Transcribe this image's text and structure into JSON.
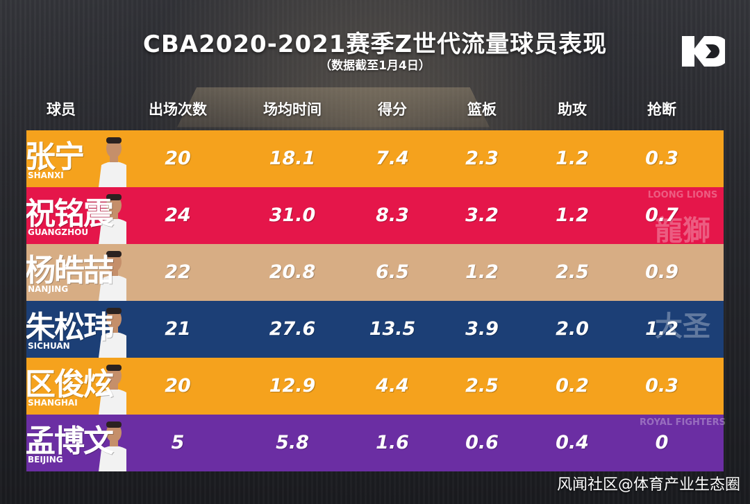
{
  "title": "CBA2020-2021赛季Z世代流量球员表现",
  "subtitle": "（数据截至1月4日）",
  "watermark": "风闻社区@体育产业生态圈",
  "logo_icon": "kd-logo-icon",
  "chart_data": {
    "type": "table",
    "columns": [
      "球员",
      "出场次数",
      "场均时间",
      "得分",
      "篮板",
      "助攻",
      "抢断"
    ],
    "rows": [
      {
        "player": "张宁",
        "team_tag": "SHANXI",
        "color": "#f5a21d",
        "values": [
          "20",
          "18.1",
          "7.4",
          "2.3",
          "1.2",
          "0.3"
        ]
      },
      {
        "player": "祝铭震",
        "team_tag": "GUANGZHOU",
        "color": "#e5164a",
        "values": [
          "24",
          "31.0",
          "8.3",
          "3.2",
          "1.2",
          "0.7"
        ]
      },
      {
        "player": "杨皓喆",
        "team_tag": "NANJING",
        "color": "#d7ad84",
        "values": [
          "22",
          "20.8",
          "6.5",
          "1.2",
          "2.5",
          "0.9"
        ]
      },
      {
        "player": "朱松玮",
        "team_tag": "SICHUAN",
        "color": "#1c3f76",
        "values": [
          "21",
          "27.6",
          "13.5",
          "3.9",
          "2.0",
          "1.2"
        ]
      },
      {
        "player": "区俊炫",
        "team_tag": "SHANGHAI",
        "color": "#f5a21d",
        "values": [
          "20",
          "12.9",
          "4.4",
          "2.5",
          "0.2",
          "0.3"
        ]
      },
      {
        "player": "孟博文",
        "team_tag": "BEIJING",
        "color": "#6b2ea3",
        "values": [
          "5",
          "5.8",
          "1.6",
          "0.6",
          "0.4",
          "0"
        ]
      }
    ],
    "emblem_texts": [
      "LOONG LIONS",
      "龍獅",
      "大圣",
      "ROYAL FIGHTERS"
    ]
  }
}
